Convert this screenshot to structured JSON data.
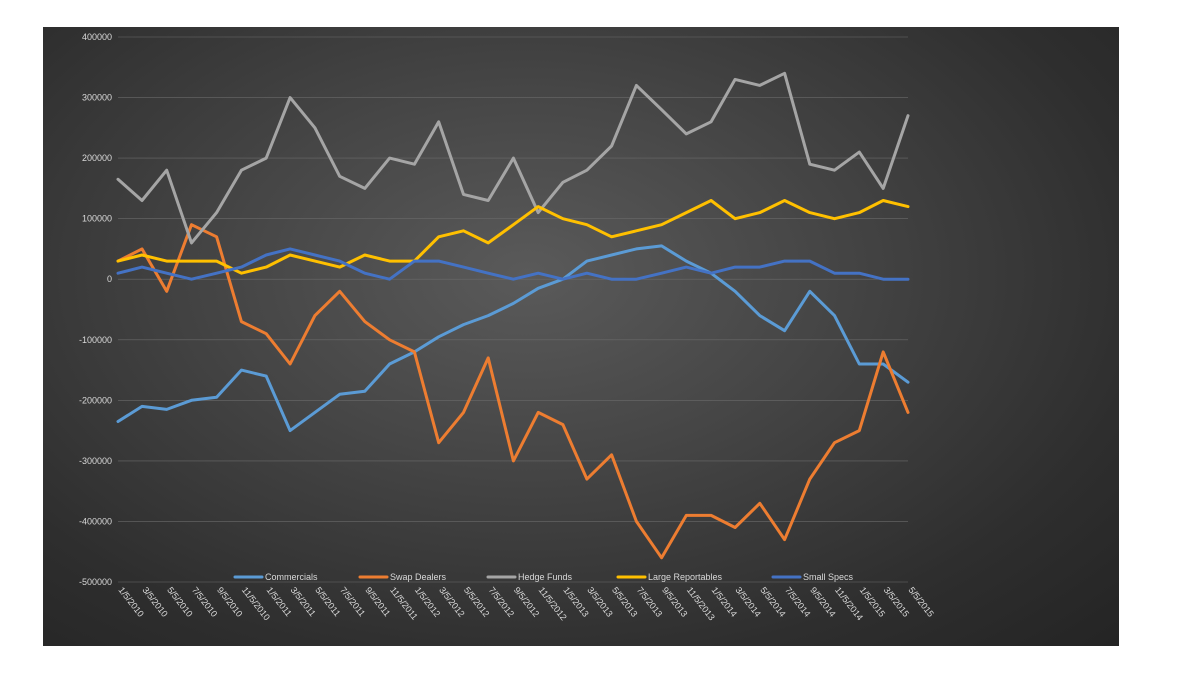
{
  "chart_data": {
    "type": "line",
    "title": "",
    "xlabel": "",
    "ylabel": "",
    "ylim": [
      -500000,
      400000
    ],
    "yticks": [
      400000,
      300000,
      200000,
      100000,
      0,
      -100000,
      -200000,
      -300000,
      -400000,
      -500000
    ],
    "xlim": [
      "2010-01-05",
      "2015-05-05"
    ],
    "x_tick_labels": [
      "1/5/2010",
      "3/5/2010",
      "5/5/2010",
      "7/5/2010",
      "9/5/2010",
      "11/5/2010",
      "1/5/2011",
      "3/5/2011",
      "5/5/2011",
      "7/5/2011",
      "9/5/2011",
      "11/5/2011",
      "1/5/2012",
      "3/5/2012",
      "5/5/2012",
      "7/5/2012",
      "9/5/2012",
      "11/5/2012",
      "1/5/2013",
      "3/5/2013",
      "5/5/2013",
      "7/5/2013",
      "9/5/2013",
      "11/5/2013",
      "1/5/2014",
      "3/5/2014",
      "5/5/2014",
      "7/5/2014",
      "9/5/2014",
      "11/5/2014",
      "1/5/2015",
      "3/5/2015",
      "5/5/2015"
    ],
    "grid": true,
    "legend_position": "bottom",
    "x": [
      "2010-01-05",
      "2010-03-05",
      "2010-05-05",
      "2010-07-05",
      "2010-09-05",
      "2010-11-05",
      "2011-01-05",
      "2011-03-05",
      "2011-05-05",
      "2011-07-05",
      "2011-09-05",
      "2011-11-05",
      "2012-01-05",
      "2012-03-05",
      "2012-05-05",
      "2012-07-05",
      "2012-09-05",
      "2012-11-05",
      "2013-01-05",
      "2013-03-05",
      "2013-05-05",
      "2013-07-05",
      "2013-09-05",
      "2013-11-05",
      "2014-01-05",
      "2014-03-05",
      "2014-05-05",
      "2014-07-05",
      "2014-09-05",
      "2014-11-05",
      "2015-01-05",
      "2015-03-05",
      "2015-05-05"
    ],
    "series": [
      {
        "name": "Commercials",
        "color": "#5b9bd5",
        "values": [
          -235000,
          -210000,
          -215000,
          -200000,
          -195000,
          -150000,
          -160000,
          -250000,
          -220000,
          -190000,
          -185000,
          -140000,
          -120000,
          -95000,
          -75000,
          -60000,
          -40000,
          -15000,
          0,
          30000,
          40000,
          50000,
          55000,
          30000,
          10000,
          -20000,
          -60000,
          -85000,
          -20000,
          -60000,
          -140000,
          -140000,
          -170000
        ]
      },
      {
        "name": "Swap Dealers",
        "color": "#ed7d31",
        "values": [
          30000,
          50000,
          -20000,
          90000,
          70000,
          -70000,
          -90000,
          -140000,
          -60000,
          -20000,
          -70000,
          -100000,
          -120000,
          -270000,
          -220000,
          -130000,
          -300000,
          -220000,
          -240000,
          -330000,
          -290000,
          -400000,
          -460000,
          -390000,
          -390000,
          -410000,
          -370000,
          -430000,
          -330000,
          -270000,
          -250000,
          -120000,
          -220000
        ]
      },
      {
        "name": "Hedge Funds",
        "color": "#a5a5a5",
        "values": [
          165000,
          130000,
          180000,
          60000,
          110000,
          180000,
          200000,
          300000,
          250000,
          170000,
          150000,
          200000,
          190000,
          260000,
          140000,
          130000,
          200000,
          110000,
          160000,
          180000,
          220000,
          320000,
          280000,
          240000,
          260000,
          330000,
          320000,
          340000,
          190000,
          180000,
          210000,
          150000,
          270000
        ]
      },
      {
        "name": "Large Reportables",
        "color": "#ffc000",
        "values": [
          30000,
          40000,
          30000,
          30000,
          30000,
          10000,
          20000,
          40000,
          30000,
          20000,
          40000,
          30000,
          30000,
          70000,
          80000,
          60000,
          90000,
          120000,
          100000,
          90000,
          70000,
          80000,
          90000,
          110000,
          130000,
          100000,
          110000,
          130000,
          110000,
          100000,
          110000,
          130000,
          120000
        ]
      },
      {
        "name": "Small Specs",
        "color": "#4472c4",
        "values": [
          10000,
          20000,
          10000,
          0,
          10000,
          20000,
          40000,
          50000,
          40000,
          30000,
          10000,
          0,
          30000,
          30000,
          20000,
          10000,
          0,
          10000,
          0,
          10000,
          0,
          0,
          10000,
          20000,
          10000,
          20000,
          20000,
          30000,
          30000,
          10000,
          10000,
          0,
          0
        ]
      }
    ]
  }
}
